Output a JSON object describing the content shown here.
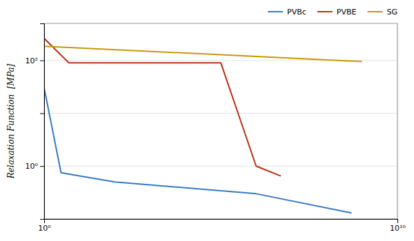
{
  "chart_data": {
    "type": "line",
    "log": true,
    "grid": true,
    "legend": "upper right",
    "ylabel": "Relaxation Function  [MPa]",
    "xlim": [
      1,
      10000000000
    ],
    "ylim": [
      0.1,
      500
    ],
    "xticks": [
      {
        "value": 1,
        "label": "10⁰"
      },
      {
        "value": 10000000000,
        "label": "10¹⁰"
      }
    ],
    "yticks": [
      {
        "value": 0.1,
        "label": null
      },
      {
        "value": 1,
        "label": "10⁰"
      },
      {
        "value": 10,
        "label": null
      },
      {
        "value": 100,
        "label": "10²"
      }
    ],
    "series": [
      {
        "name": "PVBc",
        "color": "#3878c0",
        "x": [
          1.0,
          3.0,
          10.0,
          100.0,
          1000000,
          500000000
        ],
        "values": [
          30.0,
          0.75,
          0.65,
          0.5,
          0.3,
          0.13
        ]
      },
      {
        "name": "PVBE",
        "color": "#b83010",
        "x": [
          1.0,
          5.0,
          100000,
          1000000,
          5000000
        ],
        "values": [
          260.0,
          90.0,
          90.0,
          1.0,
          0.65
        ]
      },
      {
        "name": "SG",
        "color": "#c8960a",
        "x": [
          1.0,
          1000000000
        ],
        "values": [
          185.0,
          95.0
        ]
      }
    ]
  }
}
